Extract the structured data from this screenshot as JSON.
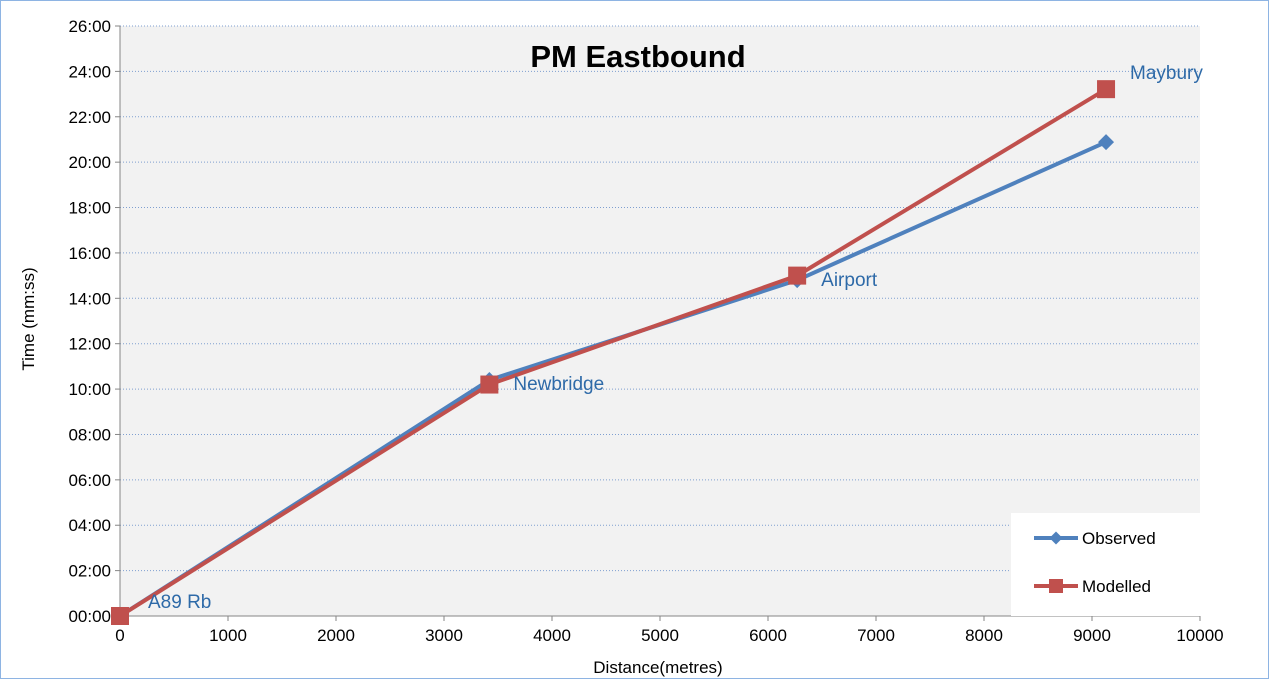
{
  "chart_data": {
    "type": "line",
    "title": "PM Eastbound",
    "xlabel": "Distance(metres)",
    "ylabel": "Time (mm:ss)",
    "xlim": [
      0,
      10000
    ],
    "ylim_seconds": [
      0,
      1560
    ],
    "x_ticks": [
      0,
      1000,
      2000,
      3000,
      4000,
      5000,
      6000,
      7000,
      8000,
      9000,
      10000
    ],
    "y_tick_labels": [
      "00:00",
      "02:00",
      "04:00",
      "06:00",
      "08:00",
      "10:00",
      "12:00",
      "14:00",
      "16:00",
      "18:00",
      "20:00",
      "22:00",
      "24:00",
      "26:00"
    ],
    "grid": "horizontal dotted",
    "legend_position": "bottom-right",
    "series": [
      {
        "name": "Observed",
        "color": "#4f81bd",
        "marker": "diamond",
        "x": [
          0,
          3420,
          6270,
          9130
        ],
        "y_seconds": [
          0,
          624,
          888,
          1253
        ],
        "y_labels": [
          "00:00",
          "10:24",
          "14:48",
          "20:53"
        ]
      },
      {
        "name": "Modelled",
        "color": "#c0504d",
        "marker": "square",
        "x": [
          0,
          3420,
          6270,
          9130
        ],
        "y_seconds": [
          0,
          612,
          900,
          1393
        ],
        "y_labels": [
          "00:00",
          "10:12",
          "15:00",
          "23:13"
        ]
      }
    ],
    "point_labels": [
      "A89 Rb",
      "Newbridge",
      "Airport",
      "Maybury"
    ]
  }
}
